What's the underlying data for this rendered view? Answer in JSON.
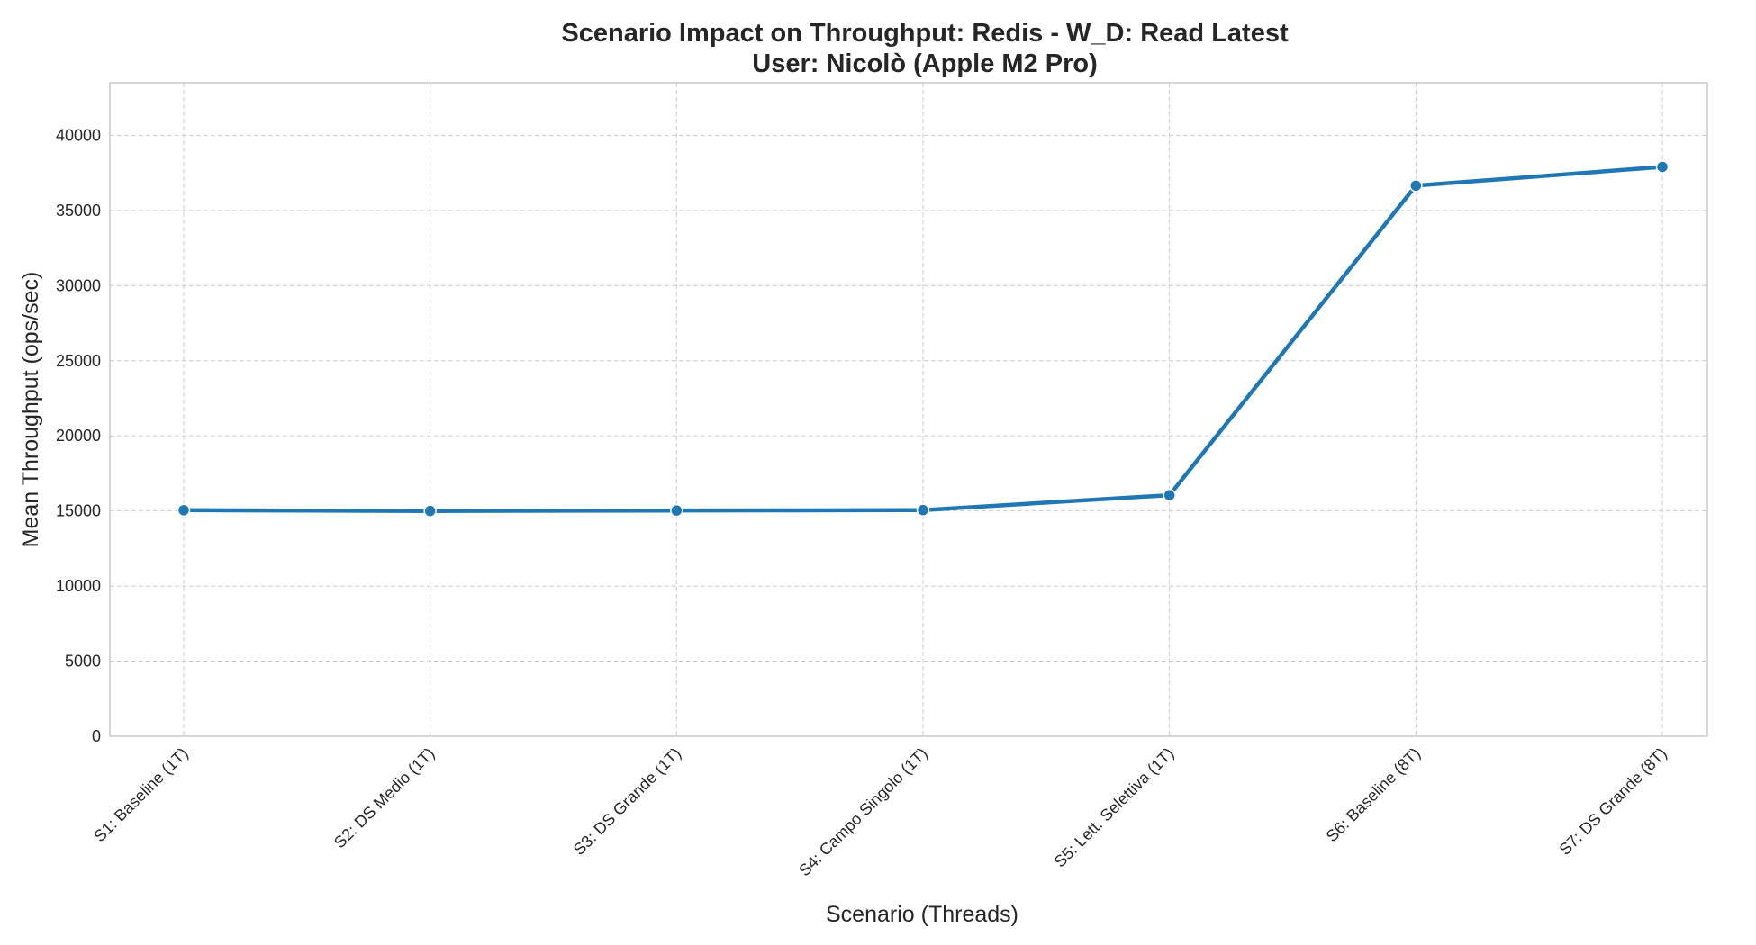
{
  "chart_data": {
    "type": "line",
    "title": "Scenario Impact on Throughput: Redis - W_D: Read Latest",
    "subtitle": "User: Nicolò (Apple M2 Pro)",
    "xlabel": "Scenario (Threads)",
    "ylabel": "Mean Throughput (ops/sec)",
    "categories": [
      "S1: Baseline (1T)",
      "S2: DS Medio (1T)",
      "S3: DS Grande (1T)",
      "S4: Campo Singolo (1T)",
      "S5: Lett. Selettiva (1T)",
      "S6: Baseline (8T)",
      "S7: DS Grande (8T)"
    ],
    "series": [
      {
        "values": [
          15050,
          15000,
          15030,
          15060,
          16050,
          36650,
          37900
        ],
        "color": "#1f77b4"
      }
    ],
    "ylim": [
      0,
      43500
    ],
    "yticks": [
      0,
      5000,
      10000,
      15000,
      20000,
      25000,
      30000,
      35000,
      40000
    ],
    "grid": true,
    "legend": "none"
  }
}
